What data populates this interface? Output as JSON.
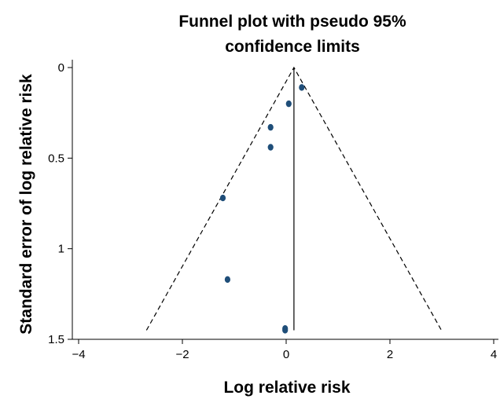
{
  "chart_data": {
    "type": "scatter",
    "title_lines": [
      "Funnel plot with pseudo 95%",
      "confidence limits"
    ],
    "xlabel": "Log relative risk",
    "ylabel": "Standard error of log relative risk",
    "xlim": [
      -4,
      4
    ],
    "ylim": [
      0,
      1.5
    ],
    "y_reversed": true,
    "x_ticks": [
      -4,
      -2,
      0,
      2,
      4
    ],
    "x_tick_labels": [
      "−4",
      "−2",
      "0",
      "2",
      "4"
    ],
    "y_ticks": [
      0,
      0.5,
      1,
      1.5
    ],
    "y_tick_labels": [
      "0",
      "0.5",
      "1",
      "1.5"
    ],
    "grid": false,
    "pooled_estimate": 0.15,
    "se_max": 1.45,
    "points": [
      {
        "x": 0.3,
        "y": 0.11
      },
      {
        "x": 0.05,
        "y": 0.2
      },
      {
        "x": -0.3,
        "y": 0.33
      },
      {
        "x": -0.3,
        "y": 0.44
      },
      {
        "x": -1.22,
        "y": 0.72
      },
      {
        "x": -1.13,
        "y": 1.17
      },
      {
        "x": -0.02,
        "y": 1.45
      },
      {
        "x": -0.02,
        "y": 1.44
      }
    ],
    "point_color": "#1f4e79"
  }
}
